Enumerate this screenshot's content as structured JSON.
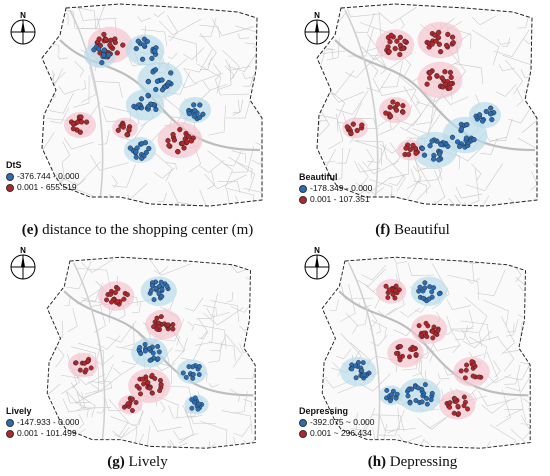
{
  "colors": {
    "blue": "#2a6db5",
    "red": "#b0262a",
    "pinkHalo": "#f3c4cf",
    "blueHalo": "#b9dbe8",
    "roads": "#c9c9c9",
    "border": "#222222"
  },
  "icons": {
    "compass": "north-arrow-compass-icon"
  },
  "panels": [
    {
      "key": "e",
      "compass_label": "N",
      "caption_letter": "(e)",
      "caption_text": " distance to the shopping center (m)",
      "legend": {
        "title": "DtS",
        "items": [
          {
            "label": "-376.744 - 0.000",
            "color": "#2a6db5"
          },
          {
            "label": "0.001 - 655.519",
            "color": "#b0262a"
          }
        ]
      }
    },
    {
      "key": "f",
      "compass_label": "N",
      "caption_letter": "(f)",
      "caption_text": " Beautiful",
      "legend": {
        "title": "Beautiful",
        "items": [
          {
            "label": "-178.349 - 0.000",
            "color": "#2a6db5"
          },
          {
            "label": "0.001 - 107.351",
            "color": "#b0262a"
          }
        ]
      }
    },
    {
      "key": "g",
      "compass_label": "N",
      "caption_letter": "(g)",
      "caption_text": " Lively",
      "legend": {
        "title": "Lively",
        "items": [
          {
            "label": "-147.933 - 0.000",
            "color": "#2a6db5"
          },
          {
            "label": "0.001 - 101.499",
            "color": "#b0262a"
          }
        ]
      }
    },
    {
      "key": "h",
      "compass_label": "N",
      "caption_letter": "(h)",
      "caption_text": " Depressing",
      "legend": {
        "title": "Depressing",
        "items": [
          {
            "label": "-392.075 ~ 0.000",
            "color": "#2a6db5"
          },
          {
            "label": "0.001 ~ 296.434",
            "color": "#b0262a"
          }
        ]
      }
    }
  ]
}
